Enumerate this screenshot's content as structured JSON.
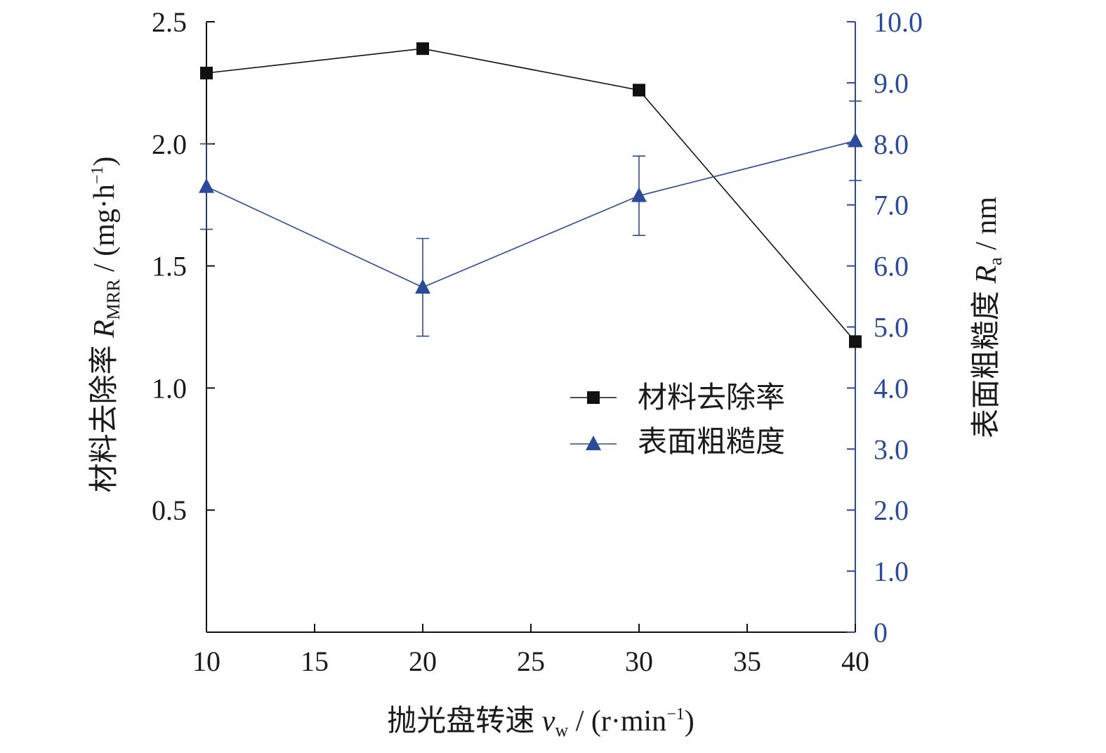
{
  "chart_data": {
    "type": "line",
    "x": [
      10,
      20,
      30,
      40
    ],
    "xlim": [
      10,
      40
    ],
    "xticks": [
      10,
      15,
      20,
      25,
      30,
      35,
      40
    ],
    "xtick_labels": [
      "10",
      "15",
      "20",
      "25",
      "30",
      "35",
      "40"
    ],
    "ylim_left": [
      0,
      2.5
    ],
    "yticks_left": [
      0.5,
      1.0,
      1.5,
      2.0,
      2.5
    ],
    "ytick_labels_left": [
      "0.5",
      "1.0",
      "1.5",
      "2.0",
      "2.5"
    ],
    "ylim_right": [
      0,
      10.0
    ],
    "yticks_right": [
      0,
      1.0,
      2.0,
      3.0,
      4.0,
      5.0,
      6.0,
      7.0,
      8.0,
      9.0,
      10.0
    ],
    "ytick_labels_right": [
      "0",
      "1.0",
      "2.0",
      "3.0",
      "4.0",
      "5.0",
      "6.0",
      "7.0",
      "8.0",
      "9.0",
      "10.0"
    ],
    "xlabel": {
      "prefix": "抛光盘转速 ",
      "var": "v",
      "sub": "w",
      "unit_a": " / (r·min",
      "sup": "−1",
      "unit_b": ")"
    },
    "ylabel_left": {
      "prefix": "材料去除率 ",
      "var": "R",
      "sub": "MRR",
      "unit_a": " / (mg·h",
      "sup": "−1",
      "unit_b": ")"
    },
    "ylabel_right": {
      "prefix": "表面粗糙度 ",
      "var": "R",
      "sub": "a",
      "unit_a": " / nm"
    },
    "grid": false,
    "legend_position": "center-right",
    "series": [
      {
        "name": "材料去除率",
        "axis": "left",
        "marker": "square",
        "color": "#111111",
        "values": [
          2.29,
          2.39,
          2.22,
          1.19
        ]
      },
      {
        "name": "表面粗糙度",
        "axis": "right",
        "marker": "triangle",
        "color": "#2b4a9a",
        "values": [
          7.3,
          5.65,
          7.15,
          8.05
        ],
        "error": [
          0.7,
          0.8,
          0.65,
          0.65
        ]
      }
    ]
  }
}
